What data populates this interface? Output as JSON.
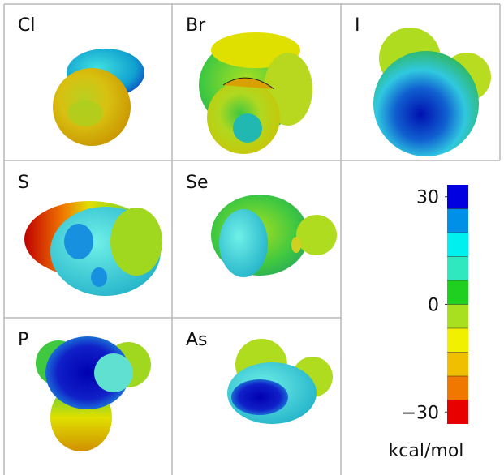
{
  "panels": [
    {
      "label": "Cl"
    },
    {
      "label": "Br"
    },
    {
      "label": "I"
    },
    {
      "label": "S"
    },
    {
      "label": "Se"
    },
    {
      "label": "P"
    },
    {
      "label": "As"
    }
  ],
  "colorbar": {
    "lim": [
      -33.33,
      33.33
    ],
    "colors": [
      "#e80000",
      "#f07800",
      "#f0c000",
      "#f0f000",
      "#a8e020",
      "#20d020",
      "#30e8c0",
      "#00f0f0",
      "#0090e8",
      "#0000e0"
    ],
    "ticks": [
      30,
      0,
      {
        "value": -30,
        "label": "−30"
      }
    ],
    "unit": "kcal/mol"
  }
}
